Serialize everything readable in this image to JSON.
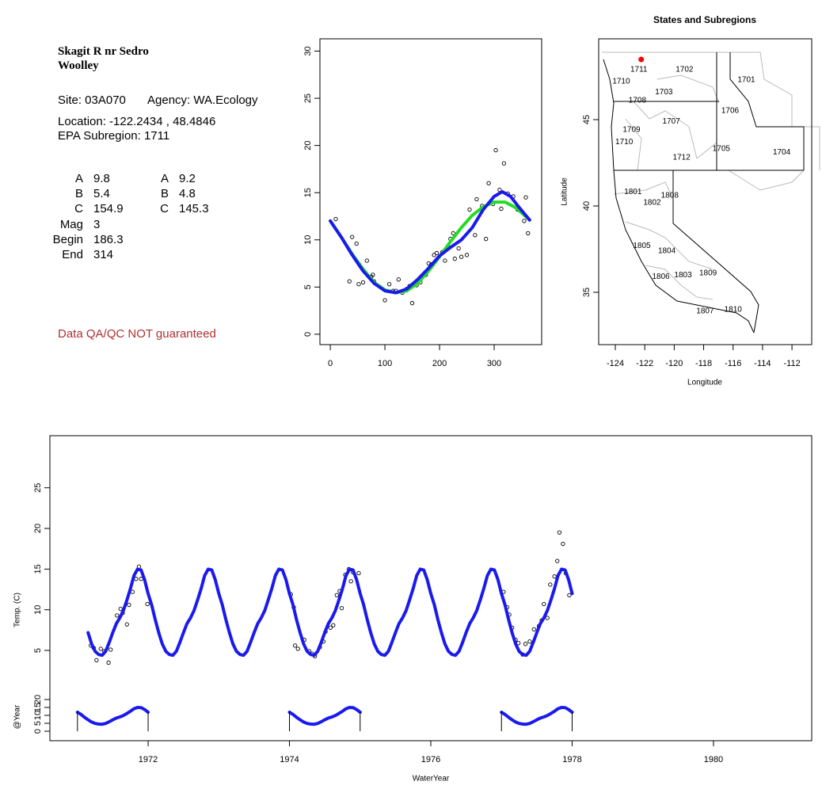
{
  "info": {
    "title_lines": [
      "Skagit R nr Sedro",
      "Woolley"
    ],
    "site": "Site: 03A070",
    "agency": "Agency: WA.Ecology",
    "location": "Location: -122.2434 , 48.4846",
    "subregion": "EPA Subregion: 1711",
    "params_left": [
      [
        "A",
        "9.8"
      ],
      [
        "B",
        "5.4"
      ],
      [
        "C",
        "154.9"
      ],
      [
        "Mag",
        "3"
      ],
      [
        "Begin",
        "186.3"
      ],
      [
        "End",
        "314"
      ]
    ],
    "params_right": [
      [
        "A",
        "9.2"
      ],
      [
        "B",
        "4.8"
      ],
      [
        "C",
        "145.3"
      ]
    ],
    "note": "Data QA/QC NOT guaranteed"
  },
  "chart_data": [
    {
      "type": "scatter",
      "xlim": [
        -19,
        387
      ],
      "ylim": [
        -1.1,
        31.3
      ],
      "xticks": [
        0,
        100,
        200,
        300
      ],
      "yticks": [
        0,
        5,
        10,
        15,
        20,
        25,
        30
      ],
      "x": [
        10,
        35,
        40,
        48,
        52,
        60,
        67,
        75,
        78,
        80,
        100,
        108,
        115,
        120,
        125,
        132,
        140,
        145,
        150,
        158,
        165,
        175,
        180,
        185,
        190,
        195,
        205,
        210,
        215,
        220,
        225,
        228,
        235,
        240,
        250,
        255,
        265,
        268,
        278,
        285,
        290,
        298,
        303,
        310,
        313,
        318,
        325,
        335,
        343,
        350,
        355,
        358,
        362
      ],
      "values": [
        12.2,
        5.6,
        10.3,
        9.6,
        5.3,
        5.5,
        7.8,
        6.1,
        6.3,
        5.6,
        3.6,
        5.3,
        4.6,
        4.6,
        5.8,
        4.4,
        4.8,
        5.1,
        3.3,
        5.2,
        5.5,
        6.3,
        7.5,
        7.4,
        8.4,
        8.6,
        8.7,
        7.8,
        9.3,
        10.1,
        10.7,
        8.0,
        9.1,
        8.2,
        8.4,
        13.2,
        10.5,
        14.3,
        13.6,
        10.1,
        16.0,
        13.8,
        19.5,
        15.3,
        13.3,
        18.1,
        14.9,
        14.6,
        13.2,
        13.0,
        12.0,
        14.5,
        10.7
      ],
      "point_color": "#000000",
      "fits": [
        {
          "color": "#22dd22",
          "x": [
            0,
            20,
            40,
            60,
            80,
            100,
            120,
            140,
            160,
            180,
            200,
            220,
            240,
            260,
            280,
            300,
            320,
            340,
            365
          ],
          "values": [
            12,
            10.3,
            8.5,
            6.9,
            5.5,
            4.7,
            4.4,
            4.6,
            5.4,
            6.7,
            8.2,
            9.8,
            11.3,
            12.6,
            13.5,
            14,
            14,
            13.4,
            12.1
          ]
        },
        {
          "color": "#1a1aee",
          "x": [
            0,
            20,
            40,
            60,
            80,
            100,
            120,
            140,
            160,
            180,
            200,
            220,
            240,
            260,
            280,
            300,
            315,
            330,
            345,
            365
          ],
          "values": [
            12,
            10.3,
            8.4,
            6.7,
            5.4,
            4.6,
            4.4,
            4.8,
            5.8,
            7,
            8.3,
            9.2,
            10,
            11.3,
            13.2,
            14.6,
            15.1,
            14.6,
            13.5,
            12.1
          ]
        }
      ]
    },
    {
      "type": "map",
      "title": "States and Subregions",
      "xlabel": "Longitude",
      "ylabel": "Latitude",
      "xlim": [
        -125.13,
        -110.66
      ],
      "ylim": [
        31.97,
        49.68
      ],
      "xticks": [
        -124,
        -122,
        -120,
        -118,
        -116,
        -114,
        -112
      ],
      "yticks": [
        35,
        40,
        45
      ],
      "regions": [
        {
          "label": "1702",
          "lon": -119.3,
          "lat": 47.9
        },
        {
          "label": "1701",
          "lon": -115.1,
          "lat": 47.3
        },
        {
          "label": "1711",
          "lon": -122.4,
          "lat": 47.9
        },
        {
          "label": "1710",
          "lon": -123.6,
          "lat": 47.2
        },
        {
          "label": "1703",
          "lon": -120.7,
          "lat": 46.6
        },
        {
          "label": "1708",
          "lon": -122.5,
          "lat": 46.1
        },
        {
          "label": "1706",
          "lon": -116.2,
          "lat": 45.5
        },
        {
          "label": "1707",
          "lon": -120.2,
          "lat": 44.9
        },
        {
          "label": "1709",
          "lon": -122.9,
          "lat": 44.4
        },
        {
          "label": "1710",
          "lon": -123.4,
          "lat": 43.7
        },
        {
          "label": "1705",
          "lon": -116.8,
          "lat": 43.3
        },
        {
          "label": "1704",
          "lon": -112.7,
          "lat": 43.1
        },
        {
          "label": "1712",
          "lon": -119.5,
          "lat": 42.8
        },
        {
          "label": "1801",
          "lon": -122.8,
          "lat": 40.8
        },
        {
          "label": "1808",
          "lon": -120.3,
          "lat": 40.6
        },
        {
          "label": "1802",
          "lon": -121.5,
          "lat": 40.2
        },
        {
          "label": "1805",
          "lon": -122.2,
          "lat": 37.7
        },
        {
          "label": "1804",
          "lon": -120.5,
          "lat": 37.4
        },
        {
          "label": "1806",
          "lon": -120.9,
          "lat": 35.9
        },
        {
          "label": "1803",
          "lon": -119.4,
          "lat": 36.0
        },
        {
          "label": "1809",
          "lon": -117.7,
          "lat": 36.1
        },
        {
          "label": "1807",
          "lon": -117.9,
          "lat": 33.9
        },
        {
          "label": "1810",
          "lon": -116.0,
          "lat": 34.0
        }
      ],
      "site": {
        "lon": -122.2434,
        "lat": 48.4846,
        "color": "#ff0000"
      }
    },
    {
      "type": "line",
      "xlabel": "WaterYear",
      "ylabel": "Temp. (C)",
      "y2label": "@Year",
      "xlim": [
        1970.61,
        1981.39
      ],
      "ylim": [
        -6.1,
        31.4
      ],
      "y2lim": [
        -6,
        186.5
      ],
      "xticks": [
        1972,
        1974,
        1976,
        1978,
        1980
      ],
      "yticks": [
        5,
        10,
        15,
        20,
        25
      ],
      "y2ticks": [
        0,
        5,
        10,
        15,
        20
      ],
      "points": {
        "color": "#000000",
        "x": [
          1971.19,
          1971.23,
          1971.27,
          1971.33,
          1971.38,
          1971.44,
          1971.47,
          1971.56,
          1971.61,
          1971.64,
          1971.7,
          1971.73,
          1971.78,
          1971.83,
          1971.87,
          1971.9,
          1971.99,
          1974.02,
          1974.06,
          1974.08,
          1974.12,
          1974.21,
          1974.28,
          1974.32,
          1974.36,
          1974.43,
          1974.48,
          1974.51,
          1974.58,
          1974.62,
          1974.67,
          1974.71,
          1974.74,
          1974.79,
          1974.84,
          1974.87,
          1974.9,
          1974.98,
          1977.03,
          1977.08,
          1977.11,
          1977.15,
          1977.2,
          1977.24,
          1977.3,
          1977.34,
          1977.4,
          1977.46,
          1977.53,
          1977.57,
          1977.6,
          1977.65,
          1977.69,
          1977.75,
          1977.79,
          1977.82,
          1977.87,
          1977.91,
          1977.96
        ],
        "values": [
          5.6,
          5.3,
          3.8,
          5.2,
          4.9,
          3.5,
          5.1,
          9.3,
          10.1,
          9.6,
          8.2,
          10.6,
          12.2,
          13.8,
          15.3,
          13.8,
          10.7,
          11.9,
          10.3,
          5.6,
          5.2,
          6.3,
          4.9,
          4.6,
          4.3,
          5.4,
          6.1,
          7.3,
          7.8,
          8.1,
          11.8,
          12.3,
          10.2,
          14.3,
          15.0,
          13.5,
          14.6,
          14.5,
          12.2,
          10.3,
          9.4,
          7.8,
          6.3,
          5.9,
          4.5,
          5.8,
          6.1,
          7.6,
          8.0,
          8.7,
          10.7,
          9.0,
          13.1,
          14.1,
          16.0,
          19.5,
          18.1,
          14.5,
          11.8
        ]
      },
      "series": [
        {
          "color": "#1a1aee",
          "x": [
            1971.15,
            1971.2,
            1971.25,
            1971.3,
            1971.35,
            1971.4,
            1971.45,
            1971.5,
            1971.55,
            1971.6,
            1971.65,
            1971.7,
            1971.75,
            1971.8,
            1971.85,
            1971.9,
            1971.95,
            1972,
            1972.05,
            1972.1,
            1972.15,
            1972.2,
            1972.25,
            1972.3,
            1972.35,
            1972.4,
            1972.45,
            1972.5,
            1972.55,
            1972.6,
            1972.65,
            1972.7,
            1972.75,
            1972.8,
            1972.85,
            1972.9,
            1972.95,
            1973,
            1973.05,
            1973.1,
            1973.15,
            1973.2,
            1973.25,
            1973.3,
            1973.35,
            1973.4,
            1973.45,
            1973.5,
            1973.55,
            1973.6,
            1973.65,
            1973.7,
            1973.75,
            1973.8,
            1973.85,
            1973.9,
            1973.95,
            1974,
            1974.05,
            1974.1,
            1974.15,
            1974.2,
            1974.25,
            1974.3,
            1974.35,
            1974.4,
            1974.45,
            1974.5,
            1974.55,
            1974.6,
            1974.65,
            1974.7,
            1974.75,
            1974.8,
            1974.85,
            1974.9,
            1974.95,
            1975,
            1975.05,
            1975.1,
            1975.15,
            1975.2,
            1975.25,
            1975.3,
            1975.35,
            1975.4,
            1975.45,
            1975.5,
            1975.55,
            1975.6,
            1975.65,
            1975.7,
            1975.75,
            1975.8,
            1975.85,
            1975.9,
            1975.95,
            1976,
            1976.05,
            1976.1,
            1976.15,
            1976.2,
            1976.25,
            1976.3,
            1976.35,
            1976.4,
            1976.45,
            1976.5,
            1976.55,
            1976.6,
            1976.65,
            1976.7,
            1976.75,
            1976.8,
            1976.85,
            1976.9,
            1976.95,
            1977,
            1977.05,
            1977.1,
            1977.15,
            1977.2,
            1977.25,
            1977.3,
            1977.35,
            1977.4,
            1977.45,
            1977.5,
            1977.55,
            1977.6,
            1977.65,
            1977.7,
            1977.75,
            1977.8,
            1977.85,
            1977.9,
            1977.95,
            1978
          ],
          "values": [
            7.2,
            5.8,
            4.9,
            4.5,
            4.4,
            4.9,
            6.0,
            7.2,
            8.3,
            9.0,
            9.9,
            11.2,
            12.6,
            14.2,
            15.0,
            14.9,
            13.7,
            12.0,
            10.6,
            8.8,
            7.2,
            5.8,
            4.9,
            4.5,
            4.4,
            4.9,
            6.0,
            7.2,
            8.3,
            9.0,
            9.9,
            11.2,
            12.6,
            14.2,
            15.0,
            14.9,
            13.7,
            12.0,
            10.6,
            8.8,
            7.2,
            5.8,
            4.9,
            4.5,
            4.4,
            4.9,
            6.0,
            7.2,
            8.3,
            9.0,
            9.9,
            11.2,
            12.6,
            14.2,
            15.0,
            14.9,
            13.7,
            12.0,
            10.6,
            8.8,
            7.2,
            5.8,
            4.9,
            4.5,
            4.4,
            4.9,
            6.0,
            7.2,
            8.3,
            9.0,
            9.9,
            11.2,
            12.6,
            14.2,
            15.0,
            14.9,
            13.7,
            12.0,
            10.6,
            8.8,
            7.2,
            5.8,
            4.9,
            4.5,
            4.4,
            4.9,
            6.0,
            7.2,
            8.3,
            9.0,
            9.9,
            11.2,
            12.6,
            14.2,
            15.0,
            14.9,
            13.7,
            12.0,
            10.6,
            8.8,
            7.2,
            5.8,
            4.9,
            4.5,
            4.4,
            4.9,
            6.0,
            7.2,
            8.3,
            9.0,
            9.9,
            11.2,
            12.6,
            14.2,
            15.0,
            14.9,
            13.7,
            12.0,
            10.6,
            8.8,
            7.2,
            5.8,
            4.9,
            4.5,
            4.4,
            4.9,
            6.0,
            7.2,
            8.3,
            9.0,
            9.9,
            11.2,
            12.6,
            14.2,
            15.0,
            14.9,
            13.7,
            12.0
          ]
        },
        {
          "color": "#1a1aee",
          "axis": "y2",
          "x": [
            1971,
            1971.05,
            1971.1,
            1971.15,
            1971.2,
            1971.25,
            1971.3,
            1971.35,
            1971.4,
            1971.45,
            1971.5,
            1971.55,
            1971.6,
            1971.65,
            1971.7,
            1971.75,
            1971.8,
            1971.85,
            1971.9,
            1971.95,
            1972
          ],
          "values": [
            12.0,
            10.6,
            8.8,
            7.2,
            5.8,
            4.9,
            4.5,
            4.4,
            4.9,
            6.0,
            7.2,
            8.3,
            9.0,
            9.9,
            11.2,
            12.6,
            14.2,
            15.0,
            14.9,
            13.7,
            12.0
          ]
        },
        {
          "color": "#1a1aee",
          "axis": "y2",
          "x": [
            1974,
            1974.05,
            1974.1,
            1974.15,
            1974.2,
            1974.25,
            1974.3,
            1974.35,
            1974.4,
            1974.45,
            1974.5,
            1974.55,
            1974.6,
            1974.65,
            1974.7,
            1974.75,
            1974.8,
            1974.85,
            1974.9,
            1974.95,
            1975
          ],
          "values": [
            12.0,
            10.6,
            8.8,
            7.2,
            5.8,
            4.9,
            4.5,
            4.4,
            4.9,
            6.0,
            7.2,
            8.3,
            9.0,
            9.9,
            11.2,
            12.6,
            14.2,
            15.0,
            14.9,
            13.7,
            12.0
          ]
        },
        {
          "color": "#1a1aee",
          "axis": "y2",
          "x": [
            1977,
            1977.05,
            1977.1,
            1977.15,
            1977.2,
            1977.25,
            1977.3,
            1977.35,
            1977.4,
            1977.45,
            1977.5,
            1977.55,
            1977.6,
            1977.65,
            1977.7,
            1977.75,
            1977.8,
            1977.85,
            1977.9,
            1977.95,
            1978
          ],
          "values": [
            12.0,
            10.6,
            8.8,
            7.2,
            5.8,
            4.9,
            4.5,
            4.4,
            4.9,
            6.0,
            7.2,
            8.3,
            9.0,
            9.9,
            11.2,
            12.6,
            14.2,
            15.0,
            14.9,
            13.7,
            12.0
          ]
        }
      ]
    }
  ]
}
